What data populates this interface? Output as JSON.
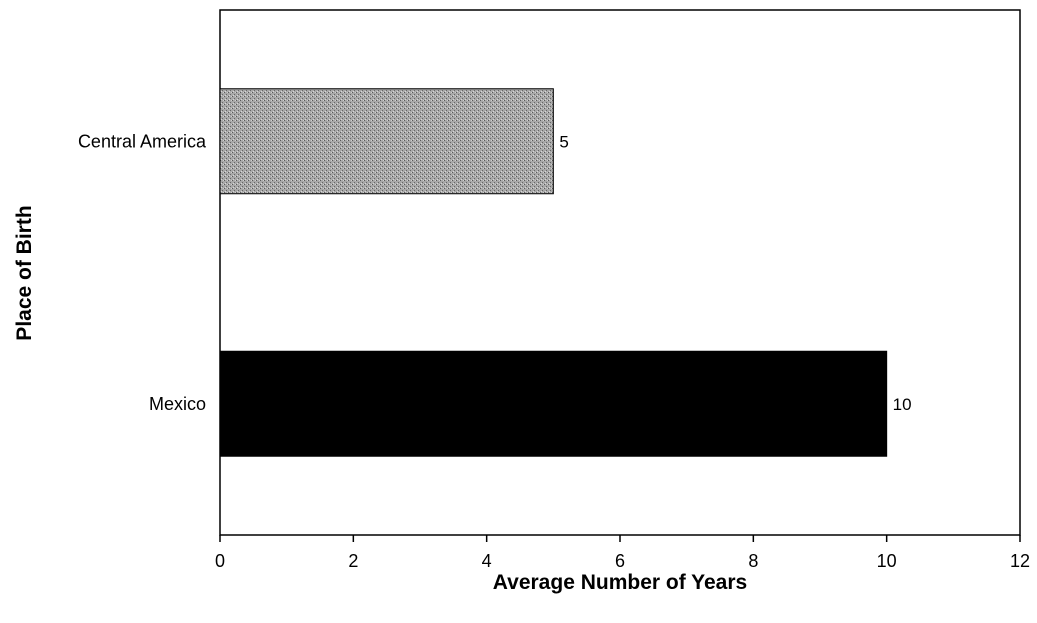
{
  "chart_data": {
    "type": "bar",
    "orientation": "horizontal",
    "title": "",
    "xlabel": "Average Number of Years",
    "ylabel": "Place of Birth",
    "categories": [
      "Central America",
      "Mexico"
    ],
    "values": [
      5,
      10
    ],
    "data_labels": [
      "5",
      "10"
    ],
    "bar_colors": [
      "#9a9a9a",
      "#000000"
    ],
    "xlim": [
      0,
      12
    ],
    "xticks": [
      0,
      2,
      4,
      6,
      8,
      10,
      12
    ],
    "grid": false,
    "legend": "none"
  }
}
